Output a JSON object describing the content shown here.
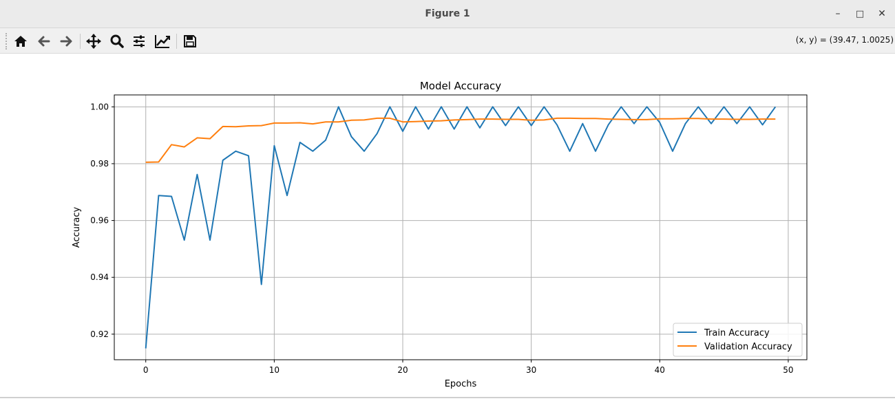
{
  "window": {
    "title": "Figure 1",
    "minimize": "–",
    "maximize": "□",
    "close": "✕"
  },
  "toolbar": {
    "icons": [
      "home-icon",
      "back-icon",
      "forward-icon",
      "pan-icon",
      "zoom-icon",
      "configure-icon",
      "edit-axis-icon",
      "save-icon"
    ],
    "coords": "(x, y) = (39.47, 1.0025)"
  },
  "chart_data": {
    "type": "line",
    "title": "Model Accuracy",
    "xlabel": "Epochs",
    "ylabel": "Accuracy",
    "xlim": [
      -2.45,
      51.45
    ],
    "ylim": [
      0.911,
      1.0042
    ],
    "xticks": [
      0,
      10,
      20,
      30,
      40,
      50
    ],
    "yticks": [
      0.92,
      0.94,
      0.96,
      0.98,
      1.0
    ],
    "ytick_labels": [
      "0.92",
      "0.94",
      "0.96",
      "0.98",
      "1.00"
    ],
    "grid": true,
    "legend_position": "lower-right",
    "x": [
      0,
      1,
      2,
      3,
      4,
      5,
      6,
      7,
      8,
      9,
      10,
      11,
      12,
      13,
      14,
      15,
      16,
      17,
      18,
      19,
      20,
      21,
      22,
      23,
      24,
      25,
      26,
      27,
      28,
      29,
      30,
      31,
      32,
      33,
      34,
      35,
      36,
      37,
      38,
      39,
      40,
      41,
      42,
      43,
      44,
      45,
      46,
      47,
      48,
      49
    ],
    "series": [
      {
        "name": "Train Accuracy",
        "color": "#1f77b4",
        "values": [
          0.915,
          0.9688,
          0.9685,
          0.9531,
          0.9762,
          0.9531,
          0.9812,
          0.9844,
          0.9828,
          0.9375,
          0.9863,
          0.9688,
          0.9875,
          0.9844,
          0.9883,
          1.0,
          0.9895,
          0.9844,
          0.9906,
          1.0,
          0.9914,
          1.0,
          0.9922,
          1.0,
          0.9922,
          1.0,
          0.9926,
          1.0,
          0.9934,
          1.0,
          0.9934,
          1.0,
          0.9937,
          0.9844,
          0.9941,
          0.9844,
          0.9937,
          1.0,
          0.9941,
          1.0,
          0.9945,
          0.9844,
          0.9941,
          1.0,
          0.9941,
          1.0,
          0.9941,
          1.0,
          0.9937,
          1.0
        ]
      },
      {
        "name": "Validation Accuracy",
        "color": "#ff7f0e",
        "values": [
          0.9805,
          0.9806,
          0.9867,
          0.9859,
          0.9891,
          0.9888,
          0.9931,
          0.993,
          0.9933,
          0.9934,
          0.9943,
          0.9943,
          0.9944,
          0.994,
          0.9947,
          0.9947,
          0.9953,
          0.9954,
          0.996,
          0.996,
          0.9947,
          0.9948,
          0.995,
          0.9951,
          0.9954,
          0.9955,
          0.9957,
          0.9957,
          0.9956,
          0.9956,
          0.9953,
          0.9954,
          0.996,
          0.996,
          0.9959,
          0.9959,
          0.9957,
          0.9956,
          0.9955,
          0.9955,
          0.9958,
          0.9958,
          0.9959,
          0.9959,
          0.9957,
          0.9957,
          0.9956,
          0.9956,
          0.9957,
          0.9957
        ]
      }
    ]
  }
}
